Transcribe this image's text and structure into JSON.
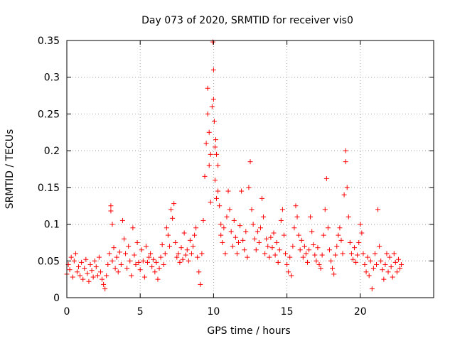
{
  "chart_data": {
    "type": "scatter",
    "title": "Day 073 of 2020, SRMTID for receiver vis0",
    "xlabel": "GPS time / hours",
    "ylabel": "SRMTID / TECUs",
    "xlim": [
      0,
      25
    ],
    "ylim": [
      0,
      0.35
    ],
    "xticks": [
      0,
      5,
      10,
      15,
      20
    ],
    "xtick_labels": [
      "0",
      "5",
      "10",
      "15",
      "20"
    ],
    "yticks": [
      0,
      0.05,
      0.1,
      0.15,
      0.2,
      0.25,
      0.3,
      0.35
    ],
    "ytick_labels": [
      "0",
      "0.05",
      "0.1",
      "0.15",
      "0.2",
      "0.25",
      "0.3",
      "0.35"
    ],
    "grid": true,
    "marker": "+",
    "color": "#ff0000",
    "series": [
      {
        "name": "SRMTID",
        "points": [
          [
            0.0,
            0.032
          ],
          [
            0.1,
            0.045
          ],
          [
            0.2,
            0.038
          ],
          [
            0.3,
            0.055
          ],
          [
            0.4,
            0.028
          ],
          [
            0.5,
            0.05
          ],
          [
            0.6,
            0.06
          ],
          [
            0.7,
            0.035
          ],
          [
            0.8,
            0.042
          ],
          [
            0.9,
            0.03
          ],
          [
            1.0,
            0.048
          ],
          [
            1.1,
            0.025
          ],
          [
            1.2,
            0.04
          ],
          [
            1.3,
            0.052
          ],
          [
            1.4,
            0.033
          ],
          [
            1.5,
            0.022
          ],
          [
            1.6,
            0.045
          ],
          [
            1.7,
            0.037
          ],
          [
            1.8,
            0.028
          ],
          [
            1.9,
            0.05
          ],
          [
            2.0,
            0.042
          ],
          [
            2.1,
            0.03
          ],
          [
            2.2,
            0.055
          ],
          [
            2.3,
            0.035
          ],
          [
            2.4,
            0.025
          ],
          [
            2.5,
            0.018
          ],
          [
            2.6,
            0.012
          ],
          [
            2.7,
            0.03
          ],
          [
            2.8,
            0.045
          ],
          [
            2.9,
            0.06
          ],
          [
            3.0,
            0.125
          ],
          [
            3.0,
            0.118
          ],
          [
            3.1,
            0.1
          ],
          [
            3.1,
            0.05
          ],
          [
            3.2,
            0.068
          ],
          [
            3.3,
            0.04
          ],
          [
            3.4,
            0.055
          ],
          [
            3.5,
            0.035
          ],
          [
            3.6,
            0.062
          ],
          [
            3.7,
            0.045
          ],
          [
            3.8,
            0.105
          ],
          [
            3.9,
            0.08
          ],
          [
            4.0,
            0.06
          ],
          [
            4.1,
            0.04
          ],
          [
            4.2,
            0.07
          ],
          [
            4.3,
            0.05
          ],
          [
            4.4,
            0.03
          ],
          [
            4.5,
            0.095
          ],
          [
            4.6,
            0.058
          ],
          [
            4.7,
            0.045
          ],
          [
            4.8,
            0.075
          ],
          [
            4.9,
            0.048
          ],
          [
            5.0,
            0.038
          ],
          [
            5.1,
            0.065
          ],
          [
            5.2,
            0.05
          ],
          [
            5.3,
            0.028
          ],
          [
            5.4,
            0.07
          ],
          [
            5.5,
            0.048
          ],
          [
            5.6,
            0.055
          ],
          [
            5.7,
            0.06
          ],
          [
            5.8,
            0.042
          ],
          [
            5.9,
            0.052
          ],
          [
            6.0,
            0.035
          ],
          [
            6.1,
            0.048
          ],
          [
            6.2,
            0.025
          ],
          [
            6.3,
            0.04
          ],
          [
            6.4,
            0.055
          ],
          [
            6.5,
            0.072
          ],
          [
            6.6,
            0.045
          ],
          [
            6.7,
            0.06
          ],
          [
            6.8,
            0.095
          ],
          [
            6.9,
            0.085
          ],
          [
            7.0,
            0.07
          ],
          [
            7.1,
            0.12
          ],
          [
            7.2,
            0.108
          ],
          [
            7.3,
            0.128
          ],
          [
            7.4,
            0.075
          ],
          [
            7.5,
            0.055
          ],
          [
            7.6,
            0.06
          ],
          [
            7.7,
            0.048
          ],
          [
            7.8,
            0.068
          ],
          [
            7.9,
            0.052
          ],
          [
            8.0,
            0.088
          ],
          [
            8.1,
            0.058
          ],
          [
            8.2,
            0.065
          ],
          [
            8.3,
            0.05
          ],
          [
            8.4,
            0.078
          ],
          [
            8.5,
            0.06
          ],
          [
            8.6,
            0.07
          ],
          [
            8.7,
            0.085
          ],
          [
            8.8,
            0.095
          ],
          [
            8.9,
            0.055
          ],
          [
            9.0,
            0.035
          ],
          [
            9.1,
            0.018
          ],
          [
            9.2,
            0.06
          ],
          [
            9.3,
            0.105
          ],
          [
            9.4,
            0.165
          ],
          [
            9.5,
            0.21
          ],
          [
            9.6,
            0.25
          ],
          [
            9.6,
            0.285
          ],
          [
            9.7,
            0.225
          ],
          [
            9.7,
            0.18
          ],
          [
            9.8,
            0.13
          ],
          [
            9.8,
            0.195
          ],
          [
            9.9,
            0.26
          ],
          [
            9.95,
            0.348
          ],
          [
            10.0,
            0.31
          ],
          [
            10.0,
            0.27
          ],
          [
            10.05,
            0.24
          ],
          [
            10.1,
            0.205
          ],
          [
            10.1,
            0.16
          ],
          [
            10.15,
            0.215
          ],
          [
            10.2,
            0.135
          ],
          [
            10.2,
            0.195
          ],
          [
            10.3,
            0.18
          ],
          [
            10.3,
            0.145
          ],
          [
            10.4,
            0.125
          ],
          [
            10.5,
            0.1
          ],
          [
            10.5,
            0.085
          ],
          [
            10.6,
            0.075
          ],
          [
            10.7,
            0.095
          ],
          [
            10.8,
            0.06
          ],
          [
            10.9,
            0.11
          ],
          [
            11.0,
            0.145
          ],
          [
            11.1,
            0.12
          ],
          [
            11.2,
            0.09
          ],
          [
            11.3,
            0.07
          ],
          [
            11.4,
            0.105
          ],
          [
            11.5,
            0.082
          ],
          [
            11.6,
            0.06
          ],
          [
            11.7,
            0.075
          ],
          [
            11.8,
            0.098
          ],
          [
            11.9,
            0.145
          ],
          [
            12.0,
            0.078
          ],
          [
            12.1,
            0.065
          ],
          [
            12.2,
            0.09
          ],
          [
            12.3,
            0.055
          ],
          [
            12.4,
            0.15
          ],
          [
            12.5,
            0.185
          ],
          [
            12.6,
            0.12
          ],
          [
            12.7,
            0.1
          ],
          [
            12.8,
            0.08
          ],
          [
            12.9,
            0.065
          ],
          [
            13.0,
            0.09
          ],
          [
            13.1,
            0.075
          ],
          [
            13.2,
            0.095
          ],
          [
            13.3,
            0.135
          ],
          [
            13.4,
            0.11
          ],
          [
            13.5,
            0.06
          ],
          [
            13.6,
            0.08
          ],
          [
            13.7,
            0.07
          ],
          [
            13.8,
            0.055
          ],
          [
            13.9,
            0.082
          ],
          [
            14.0,
            0.068
          ],
          [
            14.1,
            0.088
          ],
          [
            14.2,
            0.058
          ],
          [
            14.3,
            0.075
          ],
          [
            14.4,
            0.048
          ],
          [
            14.5,
            0.065
          ],
          [
            14.6,
            0.105
          ],
          [
            14.7,
            0.12
          ],
          [
            14.8,
            0.085
          ],
          [
            14.9,
            0.06
          ],
          [
            15.0,
            0.045
          ],
          [
            15.1,
            0.035
          ],
          [
            15.2,
            0.055
          ],
          [
            15.3,
            0.03
          ],
          [
            15.4,
            0.07
          ],
          [
            15.5,
            0.095
          ],
          [
            15.6,
            0.125
          ],
          [
            15.7,
            0.11
          ],
          [
            15.8,
            0.085
          ],
          [
            15.9,
            0.065
          ],
          [
            16.0,
            0.078
          ],
          [
            16.1,
            0.055
          ],
          [
            16.2,
            0.07
          ],
          [
            16.3,
            0.06
          ],
          [
            16.4,
            0.048
          ],
          [
            16.5,
            0.065
          ],
          [
            16.6,
            0.11
          ],
          [
            16.7,
            0.09
          ],
          [
            16.8,
            0.072
          ],
          [
            16.9,
            0.058
          ],
          [
            17.0,
            0.05
          ],
          [
            17.1,
            0.068
          ],
          [
            17.2,
            0.045
          ],
          [
            17.3,
            0.04
          ],
          [
            17.4,
            0.058
          ],
          [
            17.5,
            0.085
          ],
          [
            17.6,
            0.12
          ],
          [
            17.7,
            0.162
          ],
          [
            17.8,
            0.095
          ],
          [
            17.9,
            0.065
          ],
          [
            18.0,
            0.05
          ],
          [
            18.1,
            0.04
          ],
          [
            18.2,
            0.032
          ],
          [
            18.3,
            0.058
          ],
          [
            18.4,
            0.07
          ],
          [
            18.5,
            0.085
          ],
          [
            18.6,
            0.095
          ],
          [
            18.7,
            0.078
          ],
          [
            18.8,
            0.06
          ],
          [
            18.9,
            0.14
          ],
          [
            19.0,
            0.2
          ],
          [
            19.0,
            0.185
          ],
          [
            19.1,
            0.15
          ],
          [
            19.2,
            0.11
          ],
          [
            19.3,
            0.075
          ],
          [
            19.4,
            0.06
          ],
          [
            19.5,
            0.052
          ],
          [
            19.6,
            0.068
          ],
          [
            19.7,
            0.048
          ],
          [
            19.8,
            0.058
          ],
          [
            19.9,
            0.075
          ],
          [
            20.0,
            0.1
          ],
          [
            20.1,
            0.088
          ],
          [
            20.2,
            0.06
          ],
          [
            20.3,
            0.045
          ],
          [
            20.4,
            0.035
          ],
          [
            20.5,
            0.055
          ],
          [
            20.6,
            0.03
          ],
          [
            20.7,
            0.05
          ],
          [
            20.8,
            0.012
          ],
          [
            20.9,
            0.04
          ],
          [
            21.0,
            0.06
          ],
          [
            21.1,
            0.045
          ],
          [
            21.2,
            0.12
          ],
          [
            21.3,
            0.07
          ],
          [
            21.4,
            0.05
          ],
          [
            21.5,
            0.038
          ],
          [
            21.6,
            0.025
          ],
          [
            21.7,
            0.045
          ],
          [
            21.8,
            0.06
          ],
          [
            21.9,
            0.035
          ],
          [
            22.0,
            0.055
          ],
          [
            22.1,
            0.042
          ],
          [
            22.2,
            0.028
          ],
          [
            22.3,
            0.06
          ],
          [
            22.4,
            0.048
          ],
          [
            22.5,
            0.035
          ],
          [
            22.6,
            0.052
          ],
          [
            22.7,
            0.04
          ],
          [
            22.8,
            0.045
          ]
        ]
      }
    ]
  }
}
